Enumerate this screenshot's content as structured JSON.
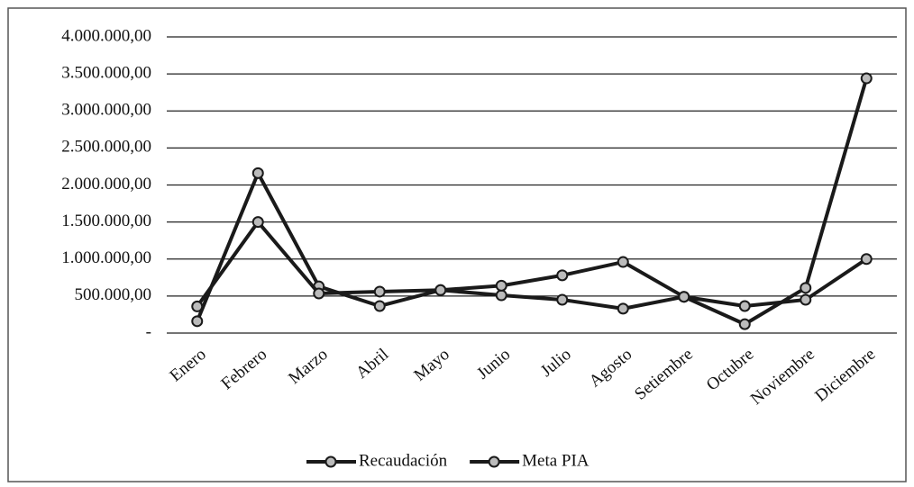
{
  "chart_data": {
    "type": "line",
    "categories": [
      "Enero",
      "Febrero",
      "Marzo",
      "Abril",
      "Mayo",
      "Junio",
      "Julio",
      "Agosto",
      "Setiembre",
      "Octubre",
      "Noviembre",
      "Diciembre"
    ],
    "series": [
      {
        "name": "Recaudación",
        "color": "#1a1a1a",
        "values": [
          160000,
          2160000,
          630000,
          365000,
          580000,
          510000,
          450000,
          330000,
          490000,
          120000,
          610000,
          3440000
        ]
      },
      {
        "name": "Meta PIA",
        "color": "#1a1a1a",
        "values": [
          360000,
          1500000,
          535000,
          560000,
          580000,
          640000,
          780000,
          960000,
          490000,
          365000,
          450000,
          1000000
        ]
      }
    ],
    "ylim": [
      0,
      4000000
    ],
    "yticks": [
      {
        "value": 0,
        "label": "-"
      },
      {
        "value": 500000,
        "label": "500.000,00"
      },
      {
        "value": 1000000,
        "label": "1.000.000,00"
      },
      {
        "value": 1500000,
        "label": "1.500.000,00"
      },
      {
        "value": 2000000,
        "label": "2.000.000,00"
      },
      {
        "value": 2500000,
        "label": "2.500.000,00"
      },
      {
        "value": 3000000,
        "label": "3.000.000,00"
      },
      {
        "value": 3500000,
        "label": "3.500.000,00"
      },
      {
        "value": 4000000,
        "label": "4.000.000,00"
      }
    ],
    "grid": true,
    "legend": "bottom"
  }
}
